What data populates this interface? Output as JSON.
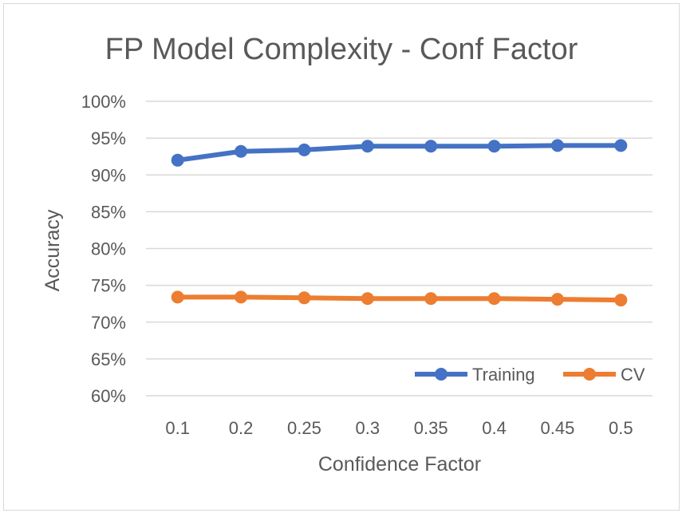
{
  "chart_data": {
    "type": "line",
    "title": "FP Model Complexity - Conf Factor",
    "xlabel": "Confidence Factor",
    "ylabel": "Accuracy",
    "categories": [
      "0.1",
      "0.2",
      "0.25",
      "0.3",
      "0.35",
      "0.4",
      "0.45",
      "0.5"
    ],
    "y_ticks": [
      "60%",
      "65%",
      "70%",
      "75%",
      "80%",
      "85%",
      "90%",
      "95%",
      "100%"
    ],
    "ylim": [
      60,
      100
    ],
    "grid": true,
    "legend_position": "bottom-right",
    "series": [
      {
        "name": "Training",
        "color": "#4472C4",
        "values": [
          92.0,
          93.2,
          93.4,
          93.9,
          93.9,
          93.9,
          94.0,
          94.0
        ]
      },
      {
        "name": "CV",
        "color": "#ED7D31",
        "values": [
          73.4,
          73.4,
          73.3,
          73.2,
          73.2,
          73.2,
          73.1,
          73.0
        ]
      }
    ]
  }
}
